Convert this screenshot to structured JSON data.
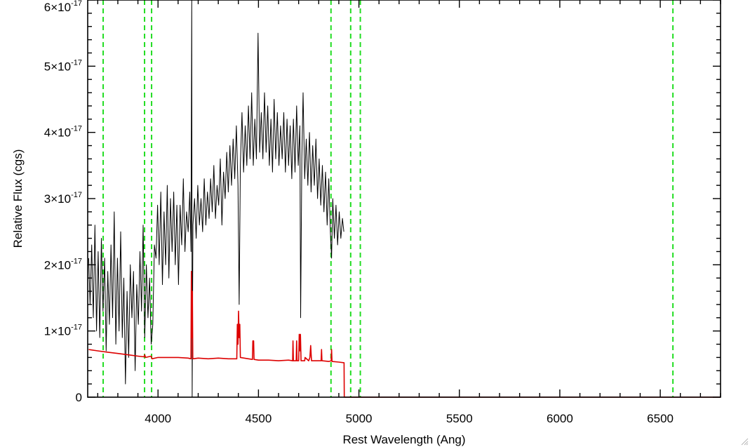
{
  "chart_data": {
    "type": "line",
    "xlabel": "Rest Wavelength (Ang)",
    "ylabel": "Relative Flux (cgs)",
    "xlim": [
      3650,
      6800
    ],
    "ylim": [
      0,
      6e-17
    ],
    "x_ticks": [
      {
        "value": 4000,
        "label": "4000"
      },
      {
        "value": 4500,
        "label": "4500"
      },
      {
        "value": 5000,
        "label": "5000"
      },
      {
        "value": 5500,
        "label": "5500"
      },
      {
        "value": 6000,
        "label": "6000"
      },
      {
        "value": 6500,
        "label": "6500"
      }
    ],
    "y_ticks": [
      {
        "value": 0,
        "mantissa": "0",
        "times": "",
        "base": "",
        "exponent": ""
      },
      {
        "value": 1e-17,
        "mantissa": "1",
        "times": "×",
        "base": "10",
        "exponent": "-17"
      },
      {
        "value": 2e-17,
        "mantissa": "2",
        "times": "×",
        "base": "10",
        "exponent": "-17"
      },
      {
        "value": 3e-17,
        "mantissa": "3",
        "times": "×",
        "base": "10",
        "exponent": "-17"
      },
      {
        "value": 4e-17,
        "mantissa": "4",
        "times": "×",
        "base": "10",
        "exponent": "-17"
      },
      {
        "value": 5e-17,
        "mantissa": "5",
        "times": "×",
        "base": "10",
        "exponent": "-17"
      },
      {
        "value": 6e-17,
        "mantissa": "6",
        "times": "×",
        "base": "10",
        "exponent": "-17"
      }
    ],
    "grid": false,
    "vertical_lines": {
      "style": "dashed",
      "color": "#22dd22",
      "x": [
        3727,
        3933,
        3968,
        4861,
        4959,
        5007,
        6563
      ]
    },
    "series": [
      {
        "color": "#000000",
        "points": [
          [
            3655,
            2.1e-17
          ],
          [
            3662,
            1.4e-17
          ],
          [
            3670,
            2.3e-17
          ],
          [
            3678,
            1.2e-17
          ],
          [
            3686,
            2.6e-17
          ],
          [
            3694,
            1e-17
          ],
          [
            3702,
            2.2e-17
          ],
          [
            3710,
            9e-18
          ],
          [
            3718,
            2.4e-17
          ],
          [
            3726,
            1.3e-17
          ],
          [
            3734,
            2.1e-17
          ],
          [
            3742,
            7e-18
          ],
          [
            3750,
            1.9e-17
          ],
          [
            3758,
            1.1e-17
          ],
          [
            3766,
            2.3e-17
          ],
          [
            3774,
            1.2e-17
          ],
          [
            3782,
            2.8e-17
          ],
          [
            3790,
            8e-18
          ],
          [
            3798,
            2.1e-17
          ],
          [
            3806,
            1e-17
          ],
          [
            3814,
            2.5e-17
          ],
          [
            3822,
            9e-18
          ],
          [
            3830,
            1.8e-17
          ],
          [
            3838,
            2e-18
          ],
          [
            3846,
            1.6e-17
          ],
          [
            3854,
            6e-18
          ],
          [
            3862,
            2e-17
          ],
          [
            3870,
            1.2e-17
          ],
          [
            3878,
            1.9e-17
          ],
          [
            3886,
            4e-18
          ],
          [
            3894,
            1.7e-17
          ],
          [
            3902,
            1.1e-17
          ],
          [
            3910,
            2.2e-17
          ],
          [
            3918,
            1.3e-17
          ],
          [
            3926,
            2.6e-17
          ],
          [
            3934,
            9e-18
          ],
          [
            3942,
            2e-17
          ],
          [
            3950,
            1.2e-17
          ],
          [
            3958,
            1.8e-17
          ],
          [
            3966,
            8e-18
          ],
          [
            3974,
            1.1e-17
          ],
          [
            3982,
            2.3e-17
          ],
          [
            3990,
            2.1e-17
          ],
          [
            3998,
            2.9e-17
          ],
          [
            4006,
            2e-17
          ],
          [
            4014,
            3.1e-17
          ],
          [
            4022,
            1.7e-17
          ],
          [
            4030,
            2.8e-17
          ],
          [
            4038,
            2e-17
          ],
          [
            4046,
            3.2e-17
          ],
          [
            4054,
            1.8e-17
          ],
          [
            4062,
            3e-17
          ],
          [
            4070,
            2.2e-17
          ],
          [
            4078,
            3.1e-17
          ],
          [
            4086,
            2e-17
          ],
          [
            4094,
            2.9e-17
          ],
          [
            4102,
            1.7e-17
          ],
          [
            4110,
            2.9e-17
          ],
          [
            4118,
            2.3e-17
          ],
          [
            4126,
            3.3e-17
          ],
          [
            4134,
            2.2e-17
          ],
          [
            4142,
            2.8e-17
          ],
          [
            4150,
            2.5e-17
          ],
          [
            4158,
            3.1e-17
          ],
          [
            4164,
            2.2e-17
          ],
          [
            4168,
            6e-17
          ],
          [
            4170,
            -1e-18
          ],
          [
            4174,
            2.6e-17
          ],
          [
            4182,
            3e-17
          ],
          [
            4190,
            2.4e-17
          ],
          [
            4198,
            3.2e-17
          ],
          [
            4206,
            2.6e-17
          ],
          [
            4214,
            3e-17
          ],
          [
            4222,
            2.5e-17
          ],
          [
            4230,
            3.3e-17
          ],
          [
            4238,
            2.6e-17
          ],
          [
            4246,
            3.1e-17
          ],
          [
            4254,
            2.7e-17
          ],
          [
            4262,
            3.3e-17
          ],
          [
            4270,
            2.8e-17
          ],
          [
            4278,
            3.5e-17
          ],
          [
            4286,
            2.7e-17
          ],
          [
            4294,
            3.2e-17
          ],
          [
            4302,
            2.9e-17
          ],
          [
            4310,
            3.6e-17
          ],
          [
            4318,
            2.6e-17
          ],
          [
            4326,
            3.4e-17
          ],
          [
            4334,
            3e-17
          ],
          [
            4342,
            3.7e-17
          ],
          [
            4350,
            3.1e-17
          ],
          [
            4358,
            3.8e-17
          ],
          [
            4366,
            3.2e-17
          ],
          [
            4374,
            3.9e-17
          ],
          [
            4382,
            3.3e-17
          ],
          [
            4390,
            4.1e-17
          ],
          [
            4398,
            3.2e-17
          ],
          [
            4404,
            1.4e-17
          ],
          [
            4410,
            3.5e-17
          ],
          [
            4418,
            4.3e-17
          ],
          [
            4426,
            3.4e-17
          ],
          [
            4434,
            4.1e-17
          ],
          [
            4442,
            3.5e-17
          ],
          [
            4450,
            4.4e-17
          ],
          [
            4458,
            3.6e-17
          ],
          [
            4466,
            4.6e-17
          ],
          [
            4474,
            3.5e-17
          ],
          [
            4482,
            4.2e-17
          ],
          [
            4490,
            3.6e-17
          ],
          [
            4498,
            5.5e-17
          ],
          [
            4506,
            3.7e-17
          ],
          [
            4514,
            4.3e-17
          ],
          [
            4522,
            3.6e-17
          ],
          [
            4530,
            4.6e-17
          ],
          [
            4538,
            3.7e-17
          ],
          [
            4546,
            4.4e-17
          ],
          [
            4554,
            3.5e-17
          ],
          [
            4562,
            4.2e-17
          ],
          [
            4570,
            3.4e-17
          ],
          [
            4578,
            4.5e-17
          ],
          [
            4586,
            3.6e-17
          ],
          [
            4594,
            4.3e-17
          ],
          [
            4602,
            3.5e-17
          ],
          [
            4610,
            4.1e-17
          ],
          [
            4618,
            3.6e-17
          ],
          [
            4626,
            4.3e-17
          ],
          [
            4634,
            3.4e-17
          ],
          [
            4642,
            4.2e-17
          ],
          [
            4650,
            3.5e-17
          ],
          [
            4658,
            4.1e-17
          ],
          [
            4666,
            3.3e-17
          ],
          [
            4674,
            4.2e-17
          ],
          [
            4682,
            3.4e-17
          ],
          [
            4690,
            4.4e-17
          ],
          [
            4698,
            3.5e-17
          ],
          [
            4706,
            4.1e-17
          ],
          [
            4710,
            1.2e-17
          ],
          [
            4716,
            3.6e-17
          ],
          [
            4722,
            4.6e-17
          ],
          [
            4730,
            3.3e-17
          ],
          [
            4738,
            3.9e-17
          ],
          [
            4746,
            3.2e-17
          ],
          [
            4754,
            4e-17
          ],
          [
            4762,
            3.1e-17
          ],
          [
            4770,
            3.8e-17
          ],
          [
            4778,
            3.2e-17
          ],
          [
            4786,
            3.9e-17
          ],
          [
            4794,
            3e-17
          ],
          [
            4802,
            3.6e-17
          ],
          [
            4810,
            2.9e-17
          ],
          [
            4818,
            3.5e-17
          ],
          [
            4826,
            2.8e-17
          ],
          [
            4834,
            3.4e-17
          ],
          [
            4842,
            2.6e-17
          ],
          [
            4850,
            3.3e-17
          ],
          [
            4858,
            2.5e-17
          ],
          [
            4864,
            2.1e-17
          ],
          [
            4870,
            3e-17
          ],
          [
            4878,
            2.4e-17
          ],
          [
            4886,
            2.9e-17
          ],
          [
            4894,
            2.3e-17
          ],
          [
            4902,
            2.8e-17
          ],
          [
            4910,
            2.4e-17
          ],
          [
            4918,
            2.7e-17
          ],
          [
            4925,
            2.5e-17
          ]
        ]
      },
      {
        "color": "#dd0000",
        "points": [
          [
            3655,
            7.2e-18
          ],
          [
            3700,
            7e-18
          ],
          [
            3750,
            6.8e-18
          ],
          [
            3800,
            6.6e-18
          ],
          [
            3850,
            6.4e-18
          ],
          [
            3900,
            6.2e-18
          ],
          [
            3930,
            6.1e-18
          ],
          [
            3934,
            6.4e-18
          ],
          [
            3938,
            6e-18
          ],
          [
            3966,
            6.2e-18
          ],
          [
            3970,
            5.8e-18
          ],
          [
            4000,
            6e-18
          ],
          [
            4050,
            6e-18
          ],
          [
            4100,
            6e-18
          ],
          [
            4150,
            5.9e-18
          ],
          [
            4164,
            5.8e-18
          ],
          [
            4166,
            1.9e-17
          ],
          [
            4169,
            9e-18
          ],
          [
            4171,
            1.6e-17
          ],
          [
            4173,
            5.8e-18
          ],
          [
            4200,
            5.9e-18
          ],
          [
            4250,
            5.8e-18
          ],
          [
            4300,
            5.9e-18
          ],
          [
            4350,
            5.8e-18
          ],
          [
            4392,
            5.8e-18
          ],
          [
            4395,
            1.1e-17
          ],
          [
            4398,
            8e-18
          ],
          [
            4401,
            1.3e-17
          ],
          [
            4404,
            9e-18
          ],
          [
            4407,
            1.1e-17
          ],
          [
            4410,
            6e-18
          ],
          [
            4450,
            5.8e-18
          ],
          [
            4470,
            5.7e-18
          ],
          [
            4472,
            8.5e-18
          ],
          [
            4476,
            8.5e-18
          ],
          [
            4478,
            5.7e-18
          ],
          [
            4500,
            5.6e-18
          ],
          [
            4550,
            5.6e-18
          ],
          [
            4600,
            5.5e-18
          ],
          [
            4650,
            5.6e-18
          ],
          [
            4670,
            5.5e-18
          ],
          [
            4672,
            8.5e-18
          ],
          [
            4674,
            5.5e-18
          ],
          [
            4688,
            5.5e-18
          ],
          [
            4690,
            8.5e-18
          ],
          [
            4692,
            5.5e-18
          ],
          [
            4700,
            5.5e-18
          ],
          [
            4703,
            9.5e-18
          ],
          [
            4706,
            7e-18
          ],
          [
            4709,
            9.5e-18
          ],
          [
            4712,
            5.5e-18
          ],
          [
            4730,
            5.5e-18
          ],
          [
            4732,
            6e-18
          ],
          [
            4750,
            5.5e-18
          ],
          [
            4756,
            6e-18
          ],
          [
            4760,
            7.8e-18
          ],
          [
            4764,
            5.5e-18
          ],
          [
            4800,
            5.5e-18
          ],
          [
            4812,
            5.5e-18
          ],
          [
            4814,
            7.2e-18
          ],
          [
            4816,
            5.5e-18
          ],
          [
            4850,
            5.4e-18
          ],
          [
            4862,
            5.5e-18
          ],
          [
            4864,
            7.2e-18
          ],
          [
            4866,
            5.4e-18
          ],
          [
            4900,
            5.3e-18
          ],
          [
            4926,
            5.2e-18
          ],
          [
            4927,
            0.0
          ],
          [
            6800,
            0.0
          ]
        ]
      }
    ]
  }
}
